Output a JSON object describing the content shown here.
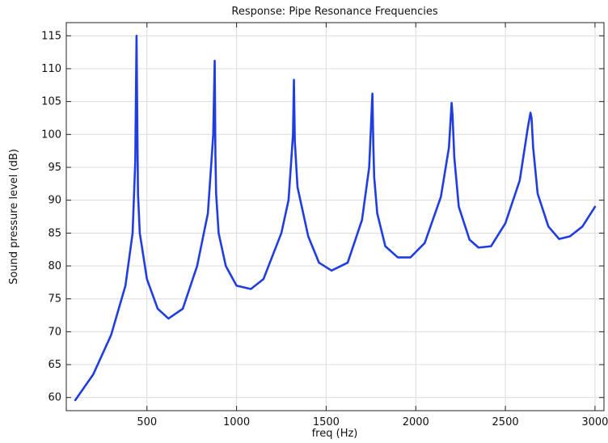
{
  "chart_data": {
    "type": "line",
    "title": "Response: Pipe Resonance Frequencies",
    "xlabel": "freq (Hz)",
    "ylabel": "Sound pressure level (dB)",
    "xlim": [
      50,
      3050
    ],
    "ylim": [
      58,
      117
    ],
    "xticks": [
      500,
      1000,
      1500,
      2000,
      2500,
      3000
    ],
    "yticks": [
      60,
      65,
      70,
      75,
      80,
      85,
      90,
      95,
      100,
      105,
      110,
      115
    ],
    "grid": true,
    "series": [
      {
        "color": "#1f3de0",
        "x": [
          100,
          200,
          300,
          380,
          420,
          435,
          442,
          446,
          450,
          460,
          500,
          560,
          620,
          700,
          780,
          840,
          870,
          878,
          882,
          886,
          900,
          940,
          1000,
          1080,
          1150,
          1250,
          1290,
          1315,
          1320,
          1325,
          1340,
          1400,
          1460,
          1530,
          1620,
          1700,
          1740,
          1758,
          1763,
          1768,
          1785,
          1830,
          1900,
          1970,
          2050,
          2140,
          2185,
          2200,
          2205,
          2215,
          2240,
          2300,
          2350,
          2420,
          2500,
          2580,
          2625,
          2640,
          2646,
          2655,
          2680,
          2740,
          2800,
          2860,
          2930,
          3000
        ],
        "values": [
          59.6,
          63.5,
          69.5,
          77,
          85,
          96,
          115,
          102,
          91,
          85,
          78,
          73.5,
          72,
          73.5,
          80,
          88,
          100,
          111.2,
          97,
          91,
          85,
          80,
          77,
          76.5,
          78,
          85,
          90,
          100,
          108.3,
          99,
          92,
          84.5,
          80.5,
          79.3,
          80.5,
          87,
          95,
          106.2,
          98.5,
          93.5,
          88,
          83,
          81.3,
          81.3,
          83.5,
          90.5,
          98,
          104.8,
          103,
          96.5,
          89,
          84,
          82.8,
          83,
          86.5,
          93,
          101,
          103.3,
          102.5,
          98,
          91,
          86,
          84.1,
          84.5,
          86,
          89
        ]
      }
    ]
  }
}
